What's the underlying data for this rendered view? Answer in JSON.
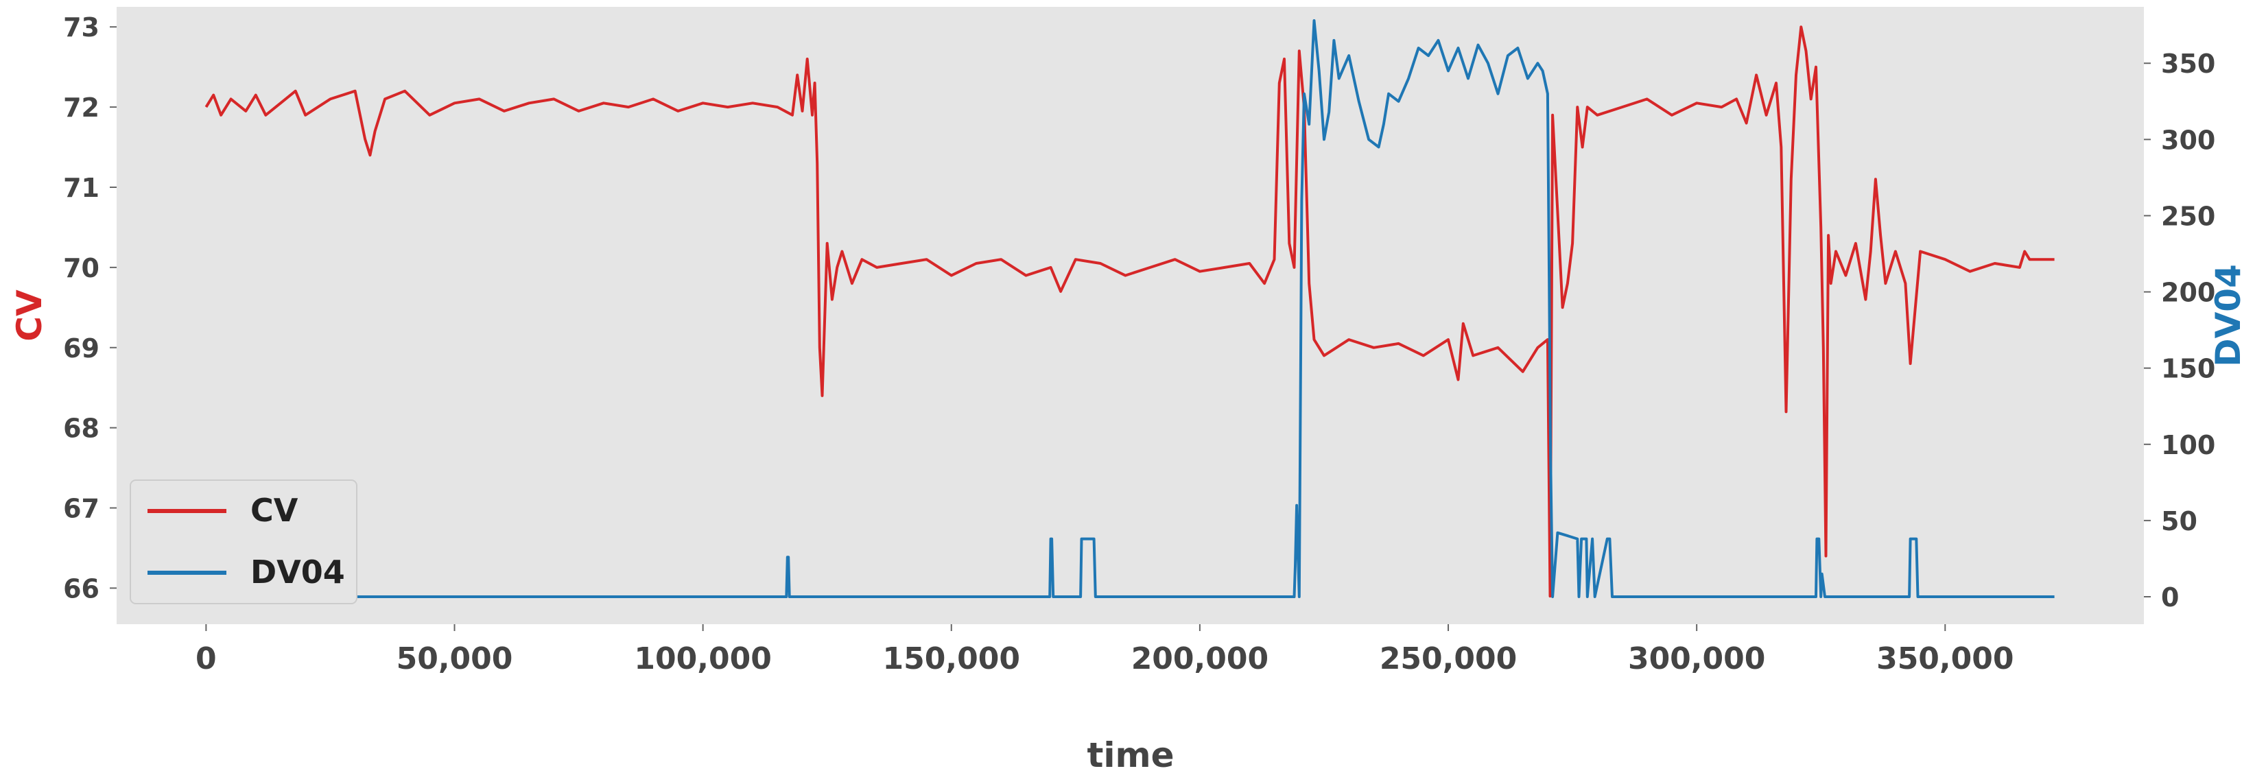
{
  "chart_data": {
    "type": "line",
    "xlabel": "time",
    "ylabel_left": "CV",
    "ylabel_right": "DV04",
    "xlim": [
      -18000,
      390000
    ],
    "ylim_left": [
      65.55,
      73.25
    ],
    "ylim_right": [
      -18,
      387
    ],
    "x_ticks": [
      0,
      50000,
      100000,
      150000,
      200000,
      250000,
      300000,
      350000
    ],
    "x_tick_labels": [
      "0",
      "50,000",
      "100,000",
      "150,000",
      "200,000",
      "250,000",
      "300,000",
      "350,000"
    ],
    "y_left_ticks": [
      66,
      67,
      68,
      69,
      70,
      71,
      72,
      73
    ],
    "y_left_tick_labels": [
      "66",
      "67",
      "68",
      "69",
      "70",
      "71",
      "72",
      "73"
    ],
    "y_right_ticks": [
      0,
      50,
      100,
      150,
      200,
      250,
      300,
      350
    ],
    "y_right_tick_labels": [
      "0",
      "50",
      "100",
      "150",
      "200",
      "250",
      "300",
      "350"
    ],
    "grid": false,
    "legend_position": "lower-left",
    "colors": {
      "CV": "#d62728",
      "DV04": "#1f77b4",
      "background": "#e5e5e5"
    },
    "series": [
      {
        "name": "CV",
        "axis": "left",
        "x": [
          0,
          1500,
          3000,
          5000,
          8000,
          10000,
          12000,
          15000,
          18000,
          20000,
          25000,
          30000,
          32000,
          33000,
          34000,
          36000,
          40000,
          45000,
          50000,
          55000,
          60000,
          65000,
          70000,
          75000,
          80000,
          85000,
          90000,
          95000,
          100000,
          105000,
          110000,
          115000,
          118000,
          119000,
          120000,
          121000,
          122000,
          122500,
          123000,
          123500,
          124000,
          125000,
          126000,
          127000,
          128000,
          130000,
          132000,
          135000,
          140000,
          145000,
          150000,
          155000,
          160000,
          165000,
          170000,
          172000,
          175000,
          180000,
          185000,
          190000,
          195000,
          200000,
          205000,
          210000,
          213000,
          215000,
          216000,
          217000,
          218000,
          219000,
          220000,
          221000,
          222000,
          223000,
          225000,
          230000,
          235000,
          240000,
          245000,
          250000,
          252000,
          253000,
          255000,
          260000,
          265000,
          268000,
          270000,
          270500,
          271000,
          272000,
          273000,
          274000,
          275000,
          276000,
          277000,
          278000,
          280000,
          285000,
          290000,
          295000,
          300000,
          305000,
          308000,
          310000,
          312000,
          314000,
          316000,
          317000,
          318000,
          319000,
          320000,
          321000,
          322000,
          323000,
          324000,
          325000,
          325500,
          326000,
          326500,
          327000,
          328000,
          330000,
          332000,
          334000,
          335000,
          336000,
          337000,
          338000,
          340000,
          342000,
          343000,
          345000,
          350000,
          355000,
          360000,
          365000,
          366000,
          367000,
          370000,
          372000
        ],
        "y": [
          72.0,
          72.15,
          71.9,
          72.1,
          71.95,
          72.15,
          71.9,
          72.05,
          72.2,
          71.9,
          72.1,
          72.2,
          71.6,
          71.4,
          71.7,
          72.1,
          72.2,
          71.9,
          72.05,
          72.1,
          71.95,
          72.05,
          72.1,
          71.95,
          72.05,
          72.0,
          72.1,
          71.95,
          72.05,
          72.0,
          72.05,
          72.0,
          71.9,
          72.4,
          71.95,
          72.6,
          71.9,
          72.3,
          71.3,
          69.0,
          68.4,
          70.3,
          69.6,
          70.0,
          70.2,
          69.8,
          70.1,
          70.0,
          70.05,
          70.1,
          69.9,
          70.05,
          70.1,
          69.9,
          70.0,
          69.7,
          70.1,
          70.05,
          69.9,
          70.0,
          70.1,
          69.95,
          70.0,
          70.05,
          69.8,
          70.1,
          72.3,
          72.6,
          70.3,
          70.0,
          72.7,
          72.0,
          69.8,
          69.1,
          68.9,
          69.1,
          69.0,
          69.05,
          68.9,
          69.1,
          68.6,
          69.3,
          68.9,
          69.0,
          68.7,
          69.0,
          69.1,
          65.9,
          71.9,
          70.7,
          69.5,
          69.8,
          70.3,
          72.0,
          71.5,
          72.0,
          71.9,
          72.0,
          72.1,
          71.9,
          72.05,
          72.0,
          72.1,
          71.8,
          72.4,
          71.9,
          72.3,
          71.5,
          68.2,
          71.1,
          72.4,
          73.0,
          72.7,
          72.1,
          72.5,
          70.5,
          69.0,
          66.4,
          70.4,
          69.8,
          70.2,
          69.9,
          70.3,
          69.6,
          70.2,
          71.1,
          70.4,
          69.8,
          70.2,
          69.8,
          68.8,
          70.2,
          70.1,
          69.95,
          70.05,
          70.0,
          70.2,
          70.1,
          70.1,
          70.1
        ]
      },
      {
        "name": "DV04",
        "axis": "right",
        "x": [
          0,
          116800,
          117000,
          117200,
          117400,
          169800,
          170000,
          170200,
          170500,
          176000,
          176200,
          176500,
          178500,
          178700,
          179000,
          219000,
          219200,
          219500,
          220000,
          220500,
          221000,
          222000,
          223000,
          224000,
          225000,
          226000,
          227000,
          228000,
          230000,
          232000,
          234000,
          236000,
          237000,
          238000,
          240000,
          242000,
          244000,
          246000,
          248000,
          250000,
          252000,
          254000,
          256000,
          258000,
          260000,
          262000,
          264000,
          266000,
          268000,
          269000,
          270000,
          270300,
          270600,
          271000,
          272000,
          274000,
          276000,
          276300,
          276800,
          277800,
          278000,
          279000,
          279500,
          282000,
          282500,
          283000,
          324000,
          324200,
          324600,
          325000,
          325200,
          325800,
          326000,
          342800,
          343000,
          344200,
          344500,
          345000,
          372000
        ],
        "y": [
          0,
          0,
          26,
          26,
          0,
          0,
          38,
          38,
          0,
          0,
          38,
          38,
          38,
          38,
          0,
          0,
          20,
          60,
          0,
          260,
          330,
          310,
          378,
          345,
          300,
          318,
          365,
          340,
          355,
          325,
          300,
          295,
          310,
          330,
          325,
          340,
          360,
          355,
          365,
          345,
          360,
          340,
          362,
          350,
          330,
          355,
          360,
          340,
          350,
          345,
          330,
          210,
          90,
          0,
          42,
          40,
          38,
          0,
          38,
          38,
          0,
          38,
          0,
          38,
          38,
          0,
          0,
          38,
          38,
          0,
          15,
          0,
          0,
          0,
          38,
          38,
          0,
          0,
          0
        ]
      }
    ]
  },
  "legend": {
    "items": [
      {
        "label": "CV",
        "color": "#d62728"
      },
      {
        "label": "DV04",
        "color": "#1f77b4"
      }
    ]
  }
}
